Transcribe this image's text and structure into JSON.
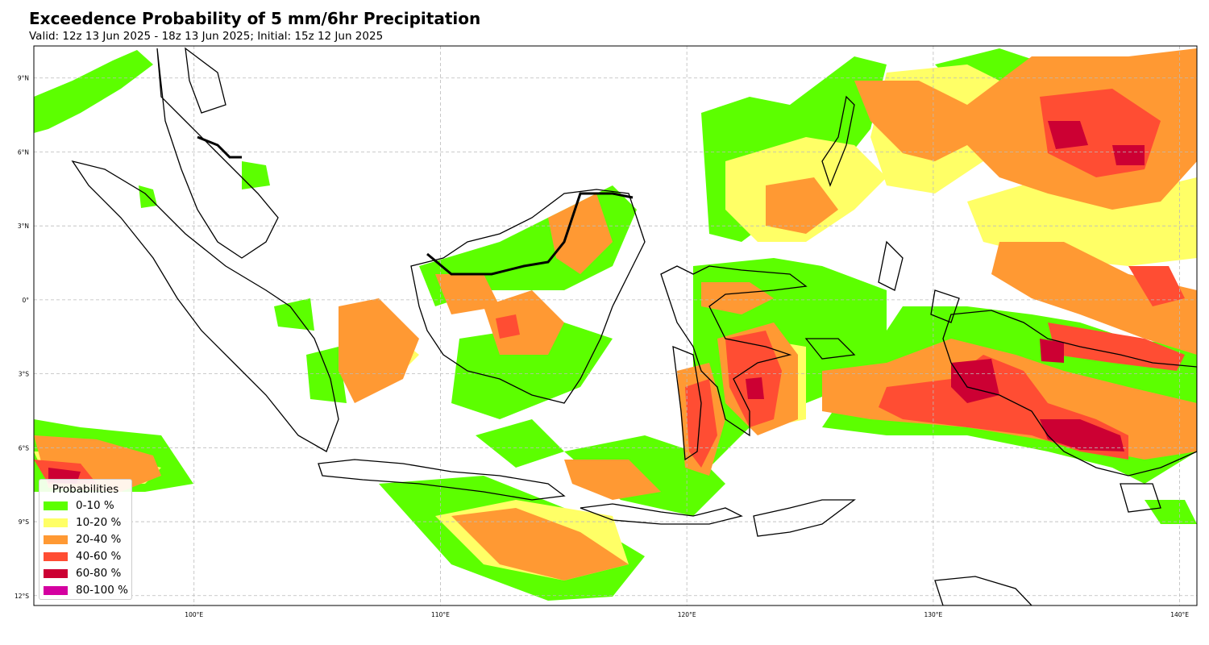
{
  "title": "Exceedence Probability of 5 mm/6hr Precipitation",
  "subtitle": "Valid: 12z 13 Jun 2025 - 18z 13 Jun 2025; Initial: 15z 12 Jun 2025",
  "map": {
    "lon_range": [
      93.5,
      140.7
    ],
    "lat_range": [
      -12.4,
      10.3
    ],
    "lon_ticks": [
      {
        "value": 100,
        "label": "100°E"
      },
      {
        "value": 110,
        "label": "110°E"
      },
      {
        "value": 120,
        "label": "120°E"
      },
      {
        "value": 130,
        "label": "130°E"
      },
      {
        "value": 140,
        "label": "140°E"
      }
    ],
    "lat_ticks": [
      {
        "value": 9,
        "label": "9°N"
      },
      {
        "value": 6,
        "label": "6°N"
      },
      {
        "value": 3,
        "label": "3°N"
      },
      {
        "value": 0,
        "label": "0°"
      },
      {
        "value": -3,
        "label": "3°S"
      },
      {
        "value": -6,
        "label": "6°S"
      },
      {
        "value": -9,
        "label": "9°S"
      },
      {
        "value": -12,
        "label": "12°S"
      }
    ],
    "gridlines": true
  },
  "legend": {
    "title": "Probabilities",
    "items": [
      {
        "label": "0-10 %",
        "color": "#5cff00"
      },
      {
        "label": "10-20 %",
        "color": "#ffff66"
      },
      {
        "label": "20-40 %",
        "color": "#ff9933"
      },
      {
        "label": "40-60 %",
        "color": "#ff4d33"
      },
      {
        "label": "60-80 %",
        "color": "#cc0033"
      },
      {
        "label": "80-100 %",
        "color": "#d400a0"
      }
    ]
  }
}
